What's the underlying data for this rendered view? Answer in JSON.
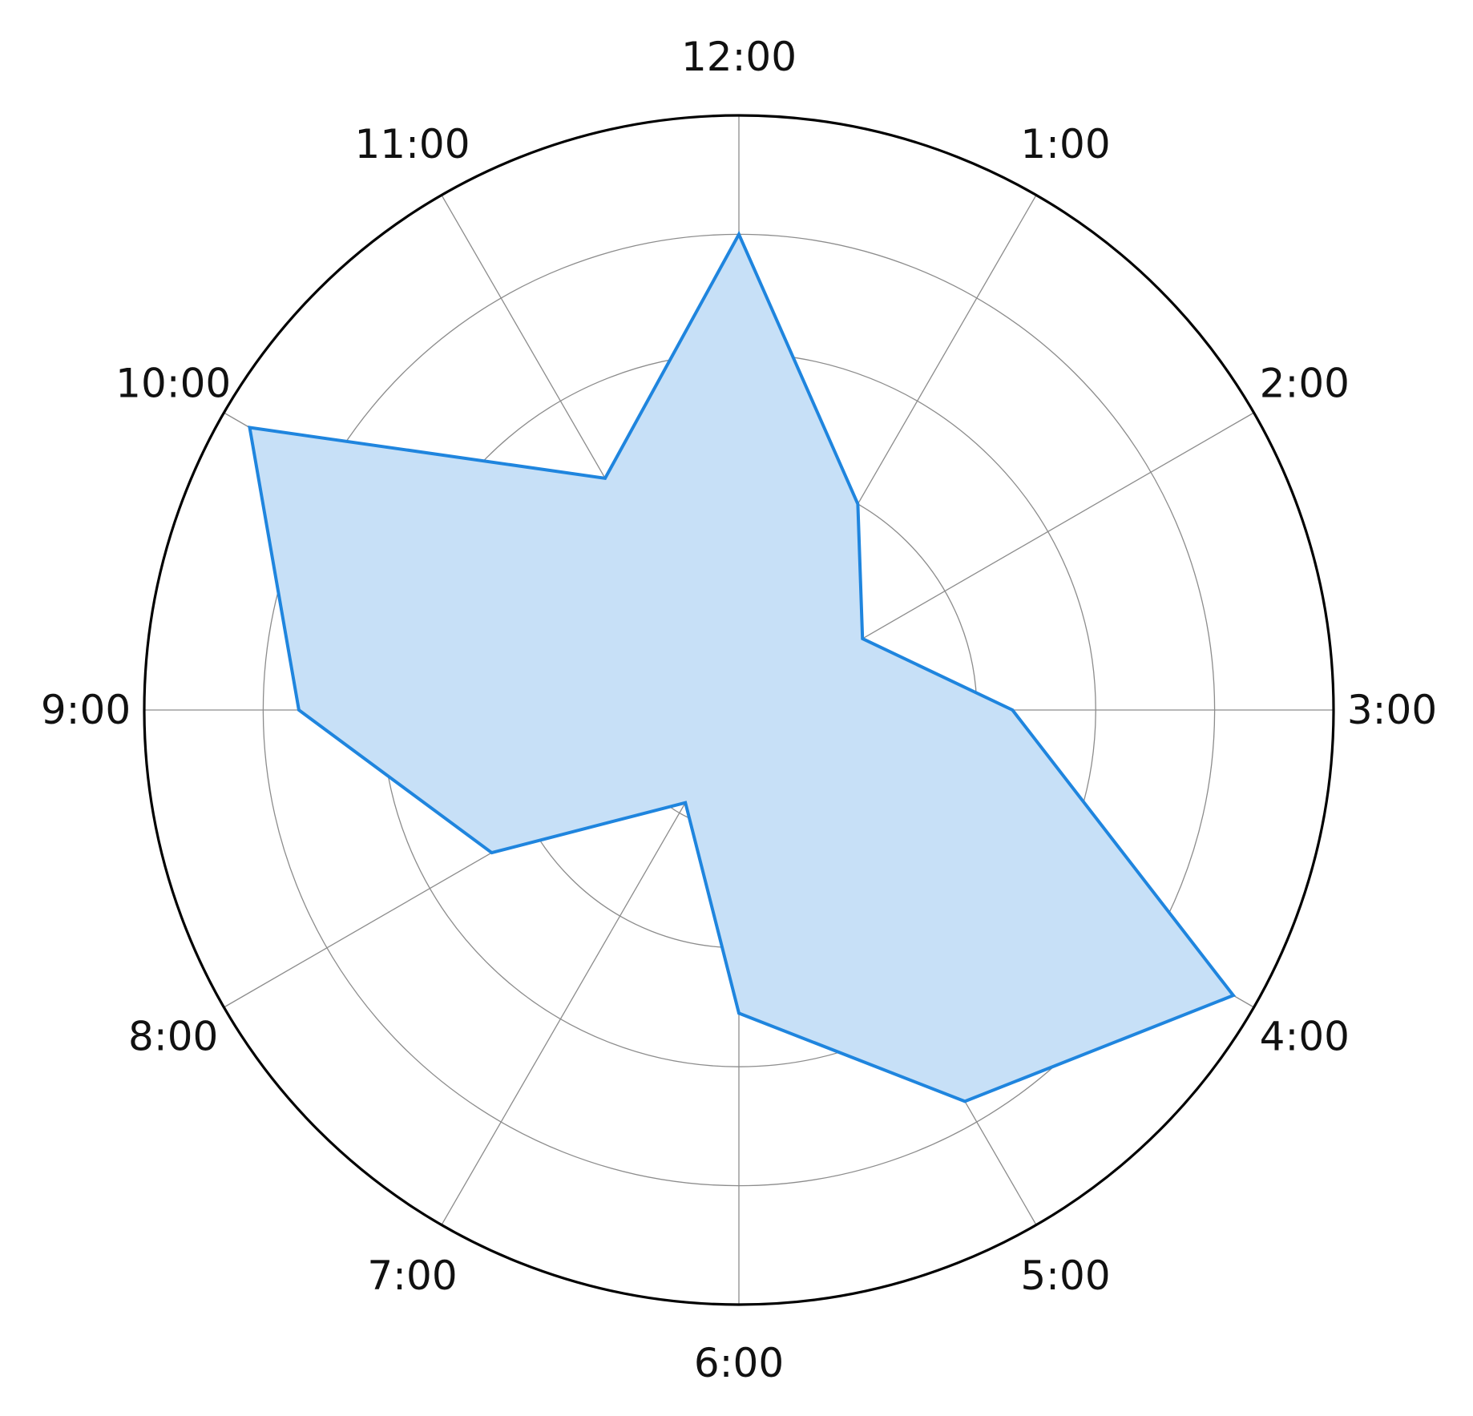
{
  "chart_data": {
    "type": "radar",
    "categories": [
      "12:00",
      "1:00",
      "2:00",
      "3:00",
      "4:00",
      "5:00",
      "6:00",
      "7:00",
      "8:00",
      "9:00",
      "10:00",
      "11:00"
    ],
    "series": [
      {
        "values": [
          4.0,
          2.0,
          1.2,
          2.3,
          4.8,
          3.8,
          2.55,
          0.9,
          2.4,
          3.7,
          4.75,
          2.25
        ]
      }
    ],
    "rlim": [
      0,
      5
    ],
    "r_ticks": [
      1,
      2,
      3,
      4,
      5
    ],
    "r_tick_labels_visible": false,
    "direction": "clockwise",
    "start": "top",
    "grid": true,
    "colors": {
      "line": "#1f85de",
      "fill": "#c7e0f7",
      "grid": "#8c8c8c",
      "frame": "#000000"
    }
  }
}
